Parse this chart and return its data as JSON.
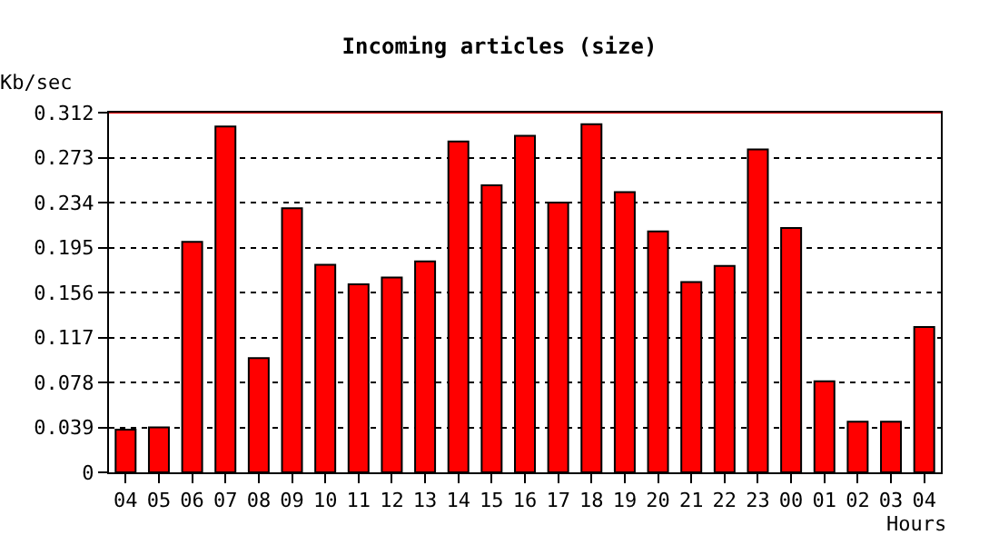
{
  "chart_data": {
    "type": "bar",
    "title": "Incoming articles (size)",
    "ylabel": "Kb/sec",
    "xlabel": "Hours",
    "categories": [
      "04",
      "05",
      "06",
      "07",
      "08",
      "09",
      "10",
      "11",
      "12",
      "13",
      "14",
      "15",
      "16",
      "17",
      "18",
      "19",
      "20",
      "21",
      "22",
      "23",
      "00",
      "01",
      "02",
      "03",
      "04"
    ],
    "values": [
      0.037,
      0.039,
      0.2,
      0.3,
      0.099,
      0.229,
      0.18,
      0.163,
      0.169,
      0.183,
      0.287,
      0.249,
      0.292,
      0.234,
      0.302,
      0.243,
      0.209,
      0.165,
      0.179,
      0.28,
      0.212,
      0.079,
      0.044,
      0.044,
      0.126
    ],
    "color": "#ff0000",
    "ylim": [
      0,
      0.312
    ],
    "yticks": [
      0,
      0.039,
      0.078,
      0.117,
      0.156,
      0.195,
      0.234,
      0.273,
      0.312
    ],
    "grid": "y",
    "ref_lines": [
      {
        "axis": "y",
        "value": 0.312,
        "color": "#ff0000"
      }
    ]
  }
}
